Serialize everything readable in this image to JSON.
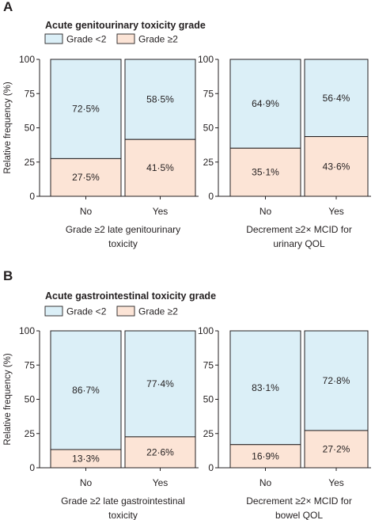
{
  "colors": {
    "low": "#dbeff7",
    "high": "#fce4d6",
    "stroke": "#231f20",
    "axis": "#231f20"
  },
  "chart_data": [
    {
      "panel": "A",
      "type": "bar",
      "stacked": true,
      "title": "Acute genitourinary toxicity grade",
      "legend": [
        "Grade <2",
        "Grade ≥2"
      ],
      "ylabel": "Relative frequency (%)",
      "ylim": [
        0,
        100
      ],
      "yticks": [
        "0",
        "25",
        "50",
        "75",
        "100"
      ],
      "subplots": [
        {
          "xlabel": [
            "Grade ≥2 late genitourinary",
            "toxicity"
          ],
          "categories": [
            "No",
            "Yes"
          ],
          "series": [
            {
              "name": "Grade <2",
              "values": [
                72.5,
                58.5
              ],
              "labels": [
                "72·5%",
                "58·5%"
              ]
            },
            {
              "name": "Grade ≥2",
              "values": [
                27.5,
                41.5
              ],
              "labels": [
                "27·5%",
                "41·5%"
              ]
            }
          ]
        },
        {
          "xlabel": [
            "Decrement ≥2× MCID for",
            "urinary QOL"
          ],
          "categories": [
            "No",
            "Yes"
          ],
          "series": [
            {
              "name": "Grade <2",
              "values": [
                64.9,
                56.4
              ],
              "labels": [
                "64·9%",
                "56·4%"
              ]
            },
            {
              "name": "Grade ≥2",
              "values": [
                35.1,
                43.6
              ],
              "labels": [
                "35·1%",
                "43·6%"
              ]
            }
          ]
        }
      ]
    },
    {
      "panel": "B",
      "type": "bar",
      "stacked": true,
      "title": "Acute gastrointestinal toxicity grade",
      "legend": [
        "Grade <2",
        "Grade ≥2"
      ],
      "ylabel": "Relative frequency (%)",
      "ylim": [
        0,
        100
      ],
      "yticks": [
        "0",
        "25",
        "50",
        "75",
        "100"
      ],
      "subplots": [
        {
          "xlabel": [
            "Grade ≥2 late gastrointestinal",
            "toxicity"
          ],
          "categories": [
            "No",
            "Yes"
          ],
          "series": [
            {
              "name": "Grade <2",
              "values": [
                86.7,
                77.4
              ],
              "labels": [
                "86·7%",
                "77·4%"
              ]
            },
            {
              "name": "Grade ≥2",
              "values": [
                13.3,
                22.6
              ],
              "labels": [
                "13·3%",
                "22·6%"
              ]
            }
          ]
        },
        {
          "xlabel": [
            "Decrement ≥2× MCID for",
            "bowel QOL"
          ],
          "categories": [
            "No",
            "Yes"
          ],
          "series": [
            {
              "name": "Grade <2",
              "values": [
                83.1,
                72.8
              ],
              "labels": [
                "83·1%",
                "72·8%"
              ]
            },
            {
              "name": "Grade ≥2",
              "values": [
                16.9,
                27.2
              ],
              "labels": [
                "16·9%",
                "27·2%"
              ]
            }
          ]
        }
      ]
    }
  ]
}
